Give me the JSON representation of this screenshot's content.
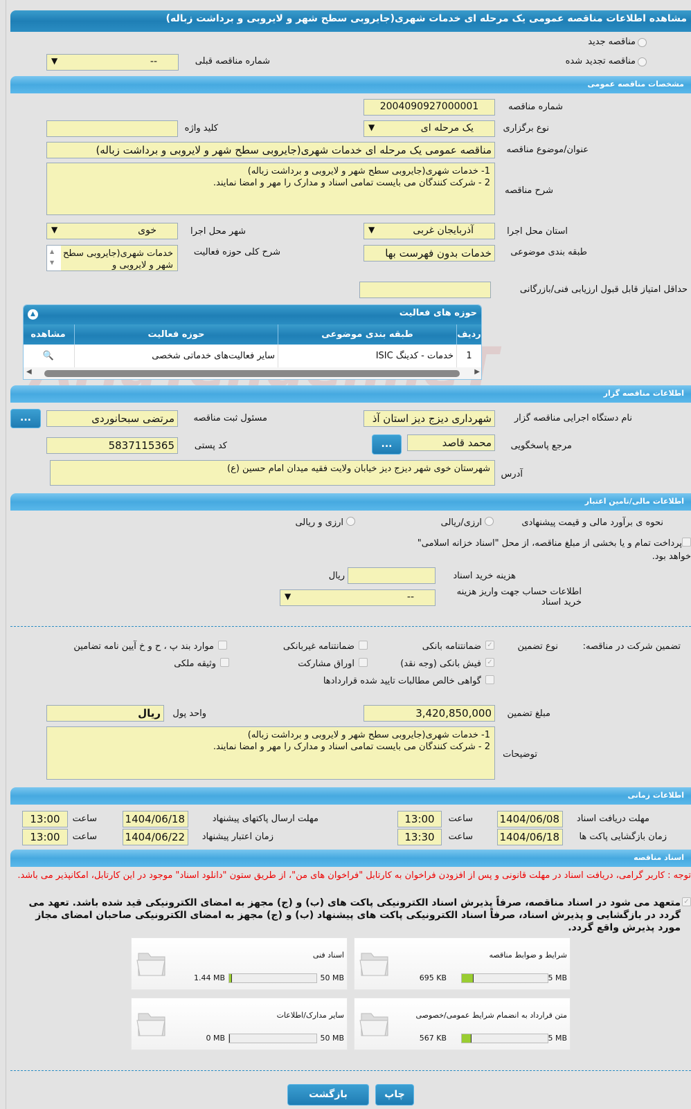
{
  "title": "مشاهده اطلاعات مناقصه عمومی یک مرحله ای خدمات شهری(جایروبی سطح شهر و لایروبی و برداشت زباله)",
  "top": {
    "new_tender": "مناقصه جدید",
    "renewed_tender": "مناقصه تجدید شده",
    "prev_number_label": "شماره مناقصه قبلی",
    "prev_number_value": "--"
  },
  "general": {
    "header": "مشخصات مناقصه عمومی",
    "number_label": "شماره مناقصه",
    "number": "2004090927000001",
    "type_label": "نوع برگزاری",
    "type": "یک مرحله ای",
    "keyword_label": "کلید واژه",
    "keyword": "",
    "subject_label": "عنوان/موضوع مناقصه",
    "subject": "مناقصه عمومی یک مرحله ای خدمات شهری(جایروبی سطح شهر و لایروبی و برداشت زباله)",
    "desc_label": "شرح مناقصه",
    "desc": "1- خدمات شهری(جایروبی سطح شهر و لایروبی و برداشت زباله)\n2 - شرکت کنندگان می بایست تمامی اسناد  و مدارک را مهر و امضا نمایند.",
    "province_label": "استان محل اجرا",
    "province": "آذربایجان غربی",
    "city_label": "شهر محل اجرا",
    "city": "خوی",
    "category_label": "طبقه بندی موضوعی",
    "category": "خدمات بدون فهرست بها",
    "scope_label": "شرح کلی حوزه فعالیت",
    "scope": "خدمات شهری(جایروبی سطح شهر و لایروبی و",
    "min_score_label": "حداقل امتیاز قابل قبول ارزیابی فنی/بازرگانی",
    "min_score": ""
  },
  "activities": {
    "title": "حوزه های فعالیت",
    "columns": [
      "ردیف",
      "طبقه بندی موضوعی",
      "حوزه فعالیت",
      "مشاهده"
    ],
    "rows": [
      {
        "index": "1",
        "category": "خدمات - کدینگ ISIC",
        "field": "سایر فعالیت‌های خدماتی شخصی"
      }
    ]
  },
  "organizer": {
    "header": "اطلاعات مناقصه گزار",
    "org_label": "نام دستگاه اجرایی مناقصه گزار",
    "org": "شهرداری دیزج دیز استان آذ",
    "registrar_label": "مسئول ثبت مناقصه",
    "registrar": "مرتضی سبحانوردی",
    "contact_label": "مرجع پاسخگویی",
    "contact": "محمد قاصد",
    "postal_label": "کد پستی",
    "postal": "5837115365",
    "address_label": "آدرس",
    "address": "شهرستان خوی شهر دیزج دیز خیابان ولایت فقیه میدان امام حسین (ع)",
    "more": "..."
  },
  "finance": {
    "header": "اطلاعات مالی/تامین اعتبار",
    "estimate_label": "نحوه ی برآورد مالی و قیمت پیشنهادی",
    "opt_rial": "ارزی/ریالی",
    "opt_both": "ارزی و ریالی",
    "treasury": "پرداخت تمام و یا بخشی از مبلغ مناقصه، از محل \"اسناد خزانه اسلامی\"",
    "treasury2": "خواهد بود.",
    "doc_cost_label": "هزینه خرید اسناد",
    "doc_cost": "",
    "rial": "ریال",
    "account_label": "اطلاعات حساب جهت واریز هزینه خرید اسناد",
    "account": "--"
  },
  "guarantee": {
    "label": "تضمین شرکت در مناقصه:",
    "type_label": "نوع تضمین",
    "options": [
      {
        "label": "ضمانتنامه بانکی",
        "checked": true
      },
      {
        "label": "ضمانتنامه غیربانکی",
        "checked": false
      },
      {
        "label": "موارد بند پ ، ح و خ آیین نامه تضامین",
        "checked": false
      },
      {
        "label": "فیش بانکی (وجه نقد)",
        "checked": true
      },
      {
        "label": "اوراق مشارکت",
        "checked": false
      },
      {
        "label": "وثیقه ملکی",
        "checked": false
      },
      {
        "label": "گواهی خالص مطالبات تایید شده قراردادها",
        "checked": false
      }
    ],
    "amount_label": "مبلغ تضمین",
    "amount": "3,420,850,000",
    "unit_label": "واحد پول",
    "unit": "ریال",
    "notes_label": "توضیحات",
    "notes": "1- خدمات شهری(جایروبی سطح شهر و لایروبی و برداشت زباله)\n2 - شرکت کنندگان می بایست تمامی اسناد  و مدارک را مهر و امضا نمایند."
  },
  "timing": {
    "header": "اطلاعات زمانی",
    "time_label": "ساعت",
    "doc_deadline_label": "مهلت دریافت اسناد",
    "doc_deadline": "1404/06/08",
    "doc_deadline_time": "13:00",
    "submit_label": "مهلت ارسال پاکتهای پیشنهاد",
    "submit": "1404/06/18",
    "submit_time": "13:00",
    "open_label": "زمان بازگشایی پاکت ها",
    "open": "1404/06/18",
    "open_time": "13:30",
    "validity_label": "زمان اعتبار پیشنهاد",
    "validity": "1404/06/22",
    "validity_time": "13:00"
  },
  "documents": {
    "header": "اسناد مناقصه",
    "notice": "توجه : کاربر گرامی، دریافت اسناد در مهلت قانونی و پس از افزودن فراخوان به کارتابل \"فراخوان های من\"، از طریق ستون \"دانلود اسناد\" موجود در این کارتابل، امکانپذیر می باشد.",
    "commitment": "متعهد می شود در اسناد مناقصه، صرفاً پذیرش اسناد الکترونیکی پاکت های (ب) و (ج) مجهز به امضای الکترونیکی قید شده باشد. تعهد می گردد در بازگشایی و پذیرش اسناد، صرفاً اسناد الکترونیکی پاکت های پیشنهاد (ب) و (ج) مجهز به امضای الکترونیکی صاحبان امضای مجاز مورد پذیرش واقع گردد.",
    "files": [
      {
        "name": "شرایط و ضوابط مناقصه",
        "size": "695 KB",
        "max": "5 MB",
        "fill": 0.14
      },
      {
        "name": "اسناد فنی",
        "size": "1.44 MB",
        "max": "50 MB",
        "fill": 0.03
      },
      {
        "name": "متن قرارداد به انضمام شرایط عمومی/خصوصی",
        "size": "567 KB",
        "max": "5 MB",
        "fill": 0.11
      },
      {
        "name": "سایر مدارک/اطلاعات",
        "size": "0 MB",
        "max": "50 MB",
        "fill": 0
      }
    ]
  },
  "buttons": {
    "print": "چاپ",
    "back": "بازگشت"
  },
  "watermark": "AriaTender.neT"
}
